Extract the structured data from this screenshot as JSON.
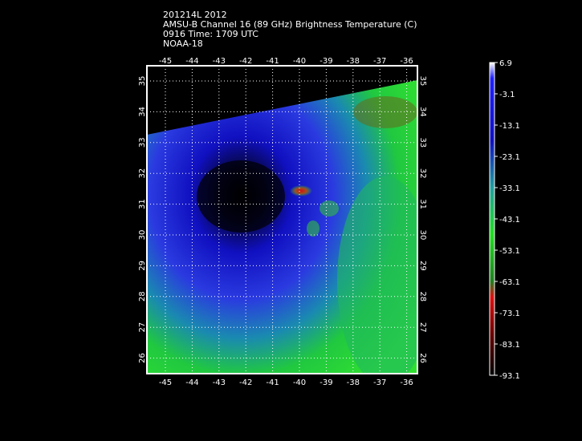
{
  "header": {
    "lines": [
      "201214L 2012",
      "AMSU-B Channel 16 (89 GHz) Brightness Temperature (C)",
      "0916 Time: 1709 UTC",
      "NOAA-18"
    ]
  },
  "map": {
    "lon_ticks": [
      "-45",
      "-44",
      "-43",
      "-42",
      "-41",
      "-40",
      "-39",
      "-38",
      "-37",
      "-36"
    ],
    "lat_ticks": [
      "35",
      "34",
      "33",
      "32",
      "31",
      "30",
      "29",
      "28",
      "27",
      "26"
    ]
  },
  "colorbar": {
    "labels": [
      "6.9",
      "-3.1",
      "-13.1",
      "-23.1",
      "-33.1",
      "-43.1",
      "-53.1",
      "-63.1",
      "-73.1",
      "-83.1",
      "-93.1"
    ]
  }
}
